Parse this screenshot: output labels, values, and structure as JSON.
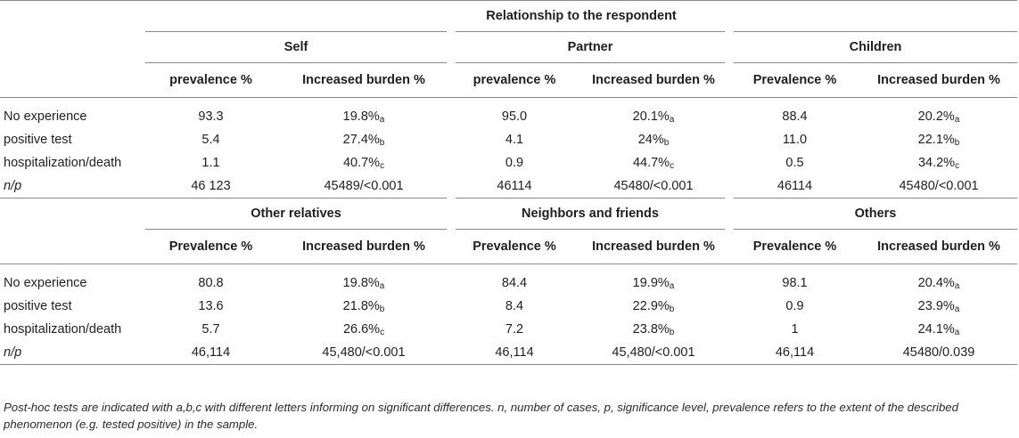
{
  "title": "Relationship to the respondent",
  "panel1": {
    "groups": [
      "Self",
      "Partner",
      "Children"
    ],
    "subheaders": [
      "prevalence %",
      "Increased burden %",
      "prevalence %",
      "Increased burden %",
      "Prevalence %",
      "Increased burden %"
    ],
    "rows": [
      {
        "label": "No experience",
        "cells": [
          "93.3",
          "19.8%",
          "95.0",
          "20.1%",
          "88.4",
          "20.2%"
        ],
        "subs": [
          "",
          "a",
          "",
          "a",
          "",
          "a"
        ]
      },
      {
        "label": "positive test",
        "cells": [
          "5.4",
          "27.4%",
          "4.1",
          "24%",
          "11.0",
          "22.1%"
        ],
        "subs": [
          "",
          "b",
          "",
          "b",
          "",
          "b"
        ]
      },
      {
        "label": "hospitalization/death",
        "cells": [
          "1.1",
          "40.7%",
          "0.9",
          "44.7%",
          "0.5",
          "34.2%"
        ],
        "subs": [
          "",
          "c",
          "",
          "c",
          "",
          "c"
        ]
      },
      {
        "label": "n/p",
        "cells": [
          "46 123",
          "45489/<0.001",
          "46114",
          "45480/<0.001",
          "46114",
          "45480/<0.001"
        ],
        "subs": [
          "",
          "",
          "",
          "",
          "",
          ""
        ]
      }
    ]
  },
  "panel2": {
    "groups": [
      "Other relatives",
      "Neighbors and friends",
      "Others"
    ],
    "subheaders": [
      "Prevalence %",
      "Increased burden %",
      "Prevalence %",
      "Increased burden %",
      "Prevalence %",
      "Increased burden %"
    ],
    "rows": [
      {
        "label": "No experience",
        "cells": [
          "80.8",
          "19.8%",
          "84.4",
          "19.9%",
          "98.1",
          "20.4%"
        ],
        "subs": [
          "",
          "a",
          "",
          "a",
          "",
          "a"
        ]
      },
      {
        "label": "positive test",
        "cells": [
          "13.6",
          "21.8%",
          "8.4",
          "22.9%",
          "0.9",
          "23.9%"
        ],
        "subs": [
          "",
          "b",
          "",
          "b",
          "",
          "a"
        ]
      },
      {
        "label": "hospitalization/death",
        "cells": [
          "5.7",
          "26.6%",
          "7.2",
          "23.8%",
          "1",
          "24.1%"
        ],
        "subs": [
          "",
          "c",
          "",
          "b",
          "",
          "a"
        ]
      },
      {
        "label": "n/p",
        "cells": [
          "46,114",
          "45,480/<0.001",
          "46,114",
          "45,480/<0.001",
          "46,114",
          "45480/0.039"
        ],
        "subs": [
          "",
          "",
          "",
          "",
          "",
          ""
        ]
      }
    ]
  },
  "footnote": "Post-hoc tests are indicated with a,b,c with different letters informing on significant differences. n, number of cases, p, significance level, prevalence refers to the extent of the described phenomenon (e.g. tested positive) in the sample."
}
